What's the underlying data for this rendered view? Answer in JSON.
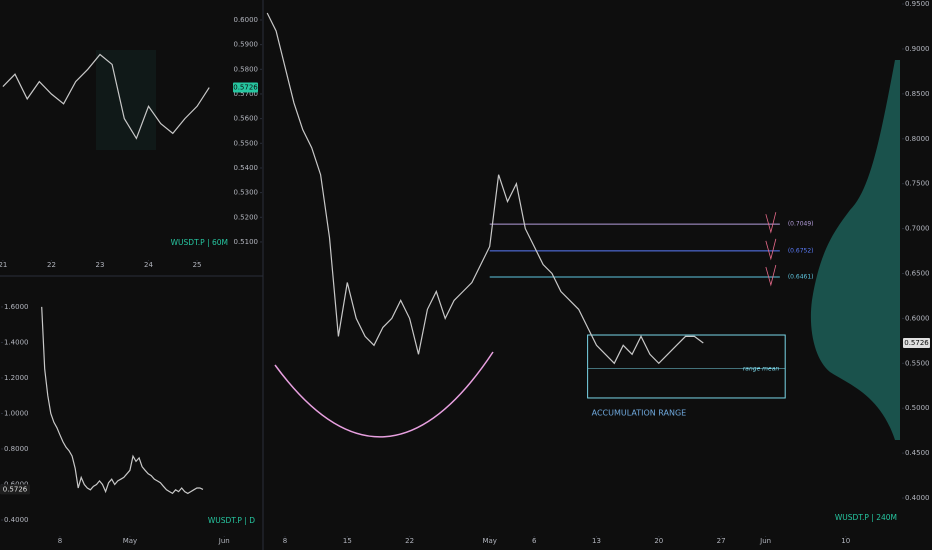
{
  "chart_data": [
    {
      "type": "line",
      "title": "WUSDT.P | 60M",
      "color": "#c8c8c8",
      "x": [
        21.0,
        21.25,
        21.5,
        21.75,
        22.0,
        22.25,
        22.5,
        22.75,
        23.0,
        23.25,
        23.5,
        23.75,
        24.0,
        24.25,
        24.5,
        24.75,
        25.0,
        25.25
      ],
      "values": [
        0.573,
        0.578,
        0.568,
        0.575,
        0.57,
        0.566,
        0.575,
        0.58,
        0.586,
        0.582,
        0.56,
        0.552,
        0.565,
        0.558,
        0.554,
        0.56,
        0.565,
        0.5726
      ],
      "xlim": [
        20.94,
        25.72
      ],
      "ylim": [
        0.4966,
        0.6081
      ],
      "xticks": [
        21,
        22,
        23,
        24,
        25
      ],
      "yticks": [
        {
          "value": 0.51,
          "label": "0.5100"
        },
        {
          "value": 0.52,
          "label": "0.5200"
        },
        {
          "value": 0.53,
          "label": "0.5300"
        },
        {
          "value": 0.54,
          "label": "0.5400"
        },
        {
          "value": 0.55,
          "label": "0.5500"
        },
        {
          "value": 0.56,
          "label": "0.5600"
        },
        {
          "value": 0.57,
          "label": "0.5700"
        },
        {
          "value": 0.58,
          "label": "0.5800"
        },
        {
          "value": 0.59,
          "label": "0.5900"
        },
        {
          "value": 0.6,
          "label": "0.6000"
        }
      ],
      "last_price": 0.5726
    },
    {
      "type": "line",
      "title": "WUSDT.P | D",
      "color": "#c8c8c8",
      "x": [
        2,
        3,
        4,
        5,
        6,
        7,
        8,
        9,
        10,
        11,
        12,
        13,
        14,
        15,
        16,
        17,
        18,
        19,
        20,
        21,
        22,
        23,
        24,
        25,
        26,
        27,
        28,
        29,
        30,
        31,
        32,
        33,
        34,
        35,
        36,
        37,
        38,
        39,
        40,
        41,
        42,
        43,
        44,
        45,
        46,
        47,
        48,
        49,
        50,
        51,
        52,
        53,
        54,
        55
      ],
      "values": [
        1.6,
        1.25,
        1.1,
        1.0,
        0.95,
        0.92,
        0.88,
        0.84,
        0.81,
        0.79,
        0.76,
        0.69,
        0.58,
        0.64,
        0.6,
        0.58,
        0.57,
        0.59,
        0.6,
        0.62,
        0.6,
        0.56,
        0.61,
        0.63,
        0.6,
        0.62,
        0.63,
        0.64,
        0.66,
        0.68,
        0.76,
        0.73,
        0.75,
        0.7,
        0.68,
        0.66,
        0.65,
        0.63,
        0.62,
        0.61,
        0.59,
        0.57,
        0.56,
        0.55,
        0.57,
        0.56,
        0.58,
        0.56,
        0.55,
        0.56,
        0.57,
        0.58,
        0.58,
        0.5726
      ],
      "xlim": [
        -11.7,
        74.4
      ],
      "ylim": [
        0.3155,
        1.763
      ],
      "xticks": [
        8,
        {
          "value": 31,
          "label": "May"
        },
        {
          "value": 62,
          "label": "Jun"
        }
      ],
      "yticks": [
        {
          "value": 0.4,
          "label": "0.4000"
        },
        {
          "value": 0.6,
          "label": "0.6000"
        },
        {
          "value": 0.8,
          "label": "0.8000"
        },
        {
          "value": 1.0,
          "label": "1.0000"
        },
        {
          "value": 1.2,
          "label": "1.2000"
        },
        {
          "value": 1.4,
          "label": "1.4000"
        },
        {
          "value": 1.6,
          "label": "1.6000"
        }
      ],
      "last_price": 0.5726
    },
    {
      "type": "line",
      "title": "WUSDT.P | 240M",
      "color": "#c8c8c8",
      "x": [
        6,
        7,
        8,
        9,
        10,
        11,
        12,
        13,
        14,
        15,
        16,
        17,
        18,
        19,
        20,
        21,
        22,
        23,
        24,
        25,
        26,
        27,
        28,
        29,
        30,
        31,
        32,
        33,
        34,
        35,
        36,
        37,
        38,
        39,
        40,
        41,
        42,
        43,
        44,
        45,
        46,
        47,
        48,
        49,
        50,
        51,
        52,
        53,
        54,
        55
      ],
      "values": [
        0.94,
        0.92,
        0.88,
        0.84,
        0.81,
        0.79,
        0.76,
        0.69,
        0.58,
        0.64,
        0.6,
        0.58,
        0.57,
        0.59,
        0.6,
        0.62,
        0.6,
        0.56,
        0.61,
        0.63,
        0.6,
        0.62,
        0.63,
        0.64,
        0.66,
        0.68,
        0.76,
        0.73,
        0.75,
        0.7,
        0.68,
        0.66,
        0.65,
        0.63,
        0.62,
        0.61,
        0.59,
        0.57,
        0.56,
        0.55,
        0.57,
        0.56,
        0.58,
        0.56,
        0.55,
        0.56,
        0.57,
        0.58,
        0.58,
        0.5726
      ],
      "xlim": [
        5.75,
        77.1
      ],
      "ylim": [
        0.3644,
        0.9545
      ],
      "xticks": [
        8,
        15,
        22,
        {
          "value": 31,
          "label": "May"
        },
        {
          "value": 36,
          "label": "6"
        },
        {
          "value": 43,
          "label": "13"
        },
        {
          "value": 50,
          "label": "20"
        },
        {
          "value": 57,
          "label": "27"
        },
        {
          "value": 62,
          "label": "Jun"
        },
        {
          "value": 71,
          "label": "10"
        }
      ],
      "yticks": [
        {
          "value": 0.4,
          "label": "0.4000"
        },
        {
          "value": 0.45,
          "label": "0.4500"
        },
        {
          "value": 0.5,
          "label": "0.5000"
        },
        {
          "value": 0.55,
          "label": "0.5500"
        },
        {
          "value": 0.6,
          "label": "0.6000"
        },
        {
          "value": 0.65,
          "label": "0.6500"
        },
        {
          "value": 0.7,
          "label": "0.7000"
        },
        {
          "value": 0.75,
          "label": "0.7500"
        },
        {
          "value": 0.8,
          "label": "0.8000"
        },
        {
          "value": 0.85,
          "label": "0.8500"
        },
        {
          "value": 0.9,
          "label": "0.9000"
        },
        {
          "value": 0.95,
          "label": "0.9500"
        }
      ],
      "last_price": 0.5726,
      "levels": [
        {
          "value": 0.7049,
          "label": "(0.7049)",
          "color": "#b39ddb",
          "start": 31.0,
          "end": 63.6
        },
        {
          "value": 0.6752,
          "label": "(0.6752)",
          "color": "#5b7cfa",
          "start": 31.0,
          "end": 63.6
        },
        {
          "value": 0.6461,
          "label": "(0.6461)",
          "color": "#5fc7e0",
          "start": 31.0,
          "end": 63.6
        }
      ],
      "range": {
        "low": 0.5114,
        "high": 0.5815,
        "mean": 0.5445,
        "start": 42.0,
        "end": 64.2,
        "color": "#7ad6e8",
        "label": "ACCUMULATION RANGE",
        "mean_label": "range mean"
      }
    }
  ]
}
